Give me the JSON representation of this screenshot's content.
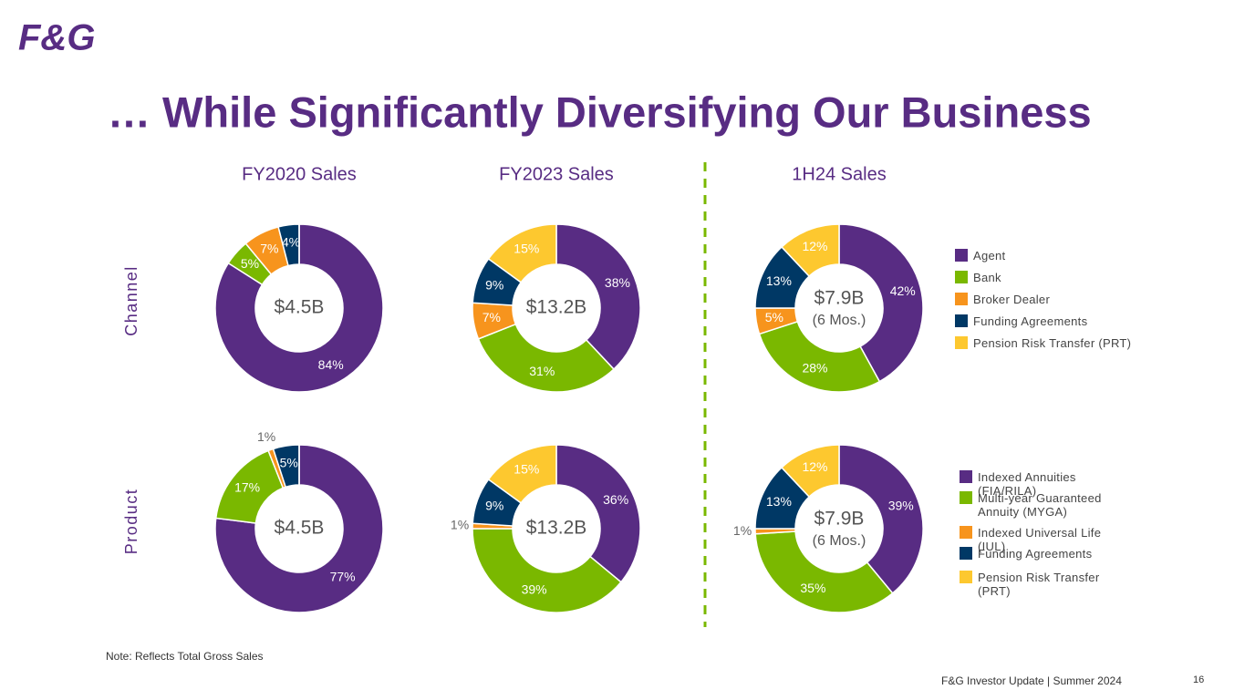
{
  "slide": {
    "logo": "F&G",
    "title": "… While Significantly Diversifying Our Business",
    "columns": [
      "FY2020 Sales",
      "FY2023 Sales",
      "1H24 Sales"
    ],
    "note": "Note:  Reflects Total Gross Sales",
    "footer": "F&G Investor Update | Summer 2024",
    "page": "16"
  },
  "chart_data": [
    {
      "type": "donut",
      "ylabel": "Channel",
      "categories": [
        "Agent",
        "Bank",
        "Broker Dealer",
        "Funding Agreements",
        "Pension Risk Transfer (PRT)"
      ],
      "colors": [
        "#582c83",
        "#7ab800",
        "#f7941d",
        "#003865",
        "#fdc82f"
      ],
      "series": [
        {
          "center_label": "$4.5B",
          "values": [
            84,
            5,
            7,
            4,
            0
          ],
          "value_labels": [
            "84%",
            "5%",
            "7%",
            "4%",
            null
          ]
        },
        {
          "center_label": "$13.2B",
          "values": [
            38,
            31,
            7,
            9,
            15
          ],
          "value_labels": [
            "38%",
            "31%",
            "7%",
            "9%",
            "15%"
          ]
        },
        {
          "center_label": "$7.9B",
          "center_sublabel": "(6 Mos.)",
          "values": [
            42,
            28,
            5,
            13,
            12
          ],
          "value_labels": [
            "42%",
            "28%",
            "5%",
            "13%",
            "12%"
          ]
        }
      ]
    },
    {
      "type": "donut",
      "ylabel": "Product",
      "categories": [
        "Indexed Annuities (FIA/RILA)",
        "Multi-year Guaranteed Annuity (MYGA)",
        "Indexed Universal Life (IUL)",
        "Funding Agreements",
        "Pension Risk Transfer (PRT)"
      ],
      "colors": [
        "#582c83",
        "#7ab800",
        "#f7941d",
        "#003865",
        "#fdc82f"
      ],
      "series": [
        {
          "center_label": "$4.5B",
          "values": [
            77,
            17,
            1,
            5,
            0
          ],
          "value_labels": [
            "77%",
            "17%",
            "1%",
            "5%",
            null
          ]
        },
        {
          "center_label": "$13.2B",
          "values": [
            36,
            39,
            1,
            9,
            15
          ],
          "value_labels": [
            "36%",
            "39%",
            "1%",
            "9%",
            "15%"
          ]
        },
        {
          "center_label": "$7.9B",
          "center_sublabel": "(6 Mos.)",
          "values": [
            39,
            35,
            1,
            13,
            12
          ],
          "value_labels": [
            "39%",
            "35%",
            "1%",
            "13%",
            "12%"
          ]
        }
      ]
    }
  ]
}
